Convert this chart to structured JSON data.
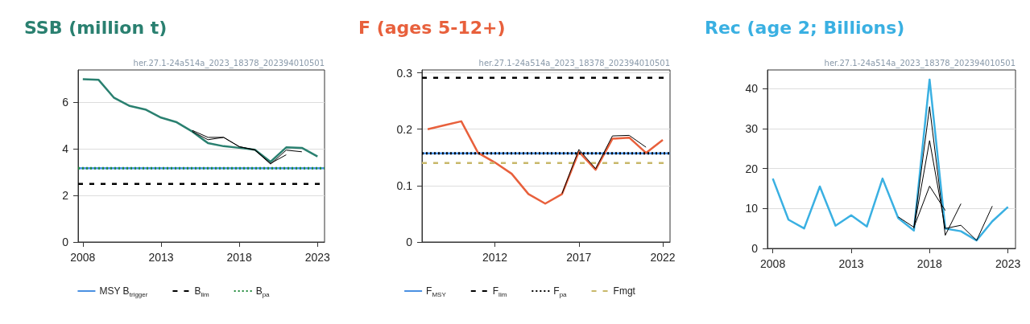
{
  "chart_data": [
    {
      "type": "line",
      "title": "SSB (million t)",
      "annotations": [
        "her.27.1-24a514a_2023_18378_202394010501"
      ],
      "xlim": [
        2007.7,
        2023.45
      ],
      "xticks": [
        2008,
        2013,
        2018,
        2023
      ],
      "ylim": [
        0,
        7.4
      ],
      "yticks": [
        0,
        2,
        4,
        6
      ],
      "grid": "y",
      "legend": "bottom",
      "series": [
        {
          "color": "#000000",
          "x": [
            2015,
            2016,
            2017,
            2018,
            2019,
            2020,
            2021,
            2022
          ],
          "values": [
            4.8,
            4.5,
            4.5,
            4.1,
            3.95,
            3.35,
            3.95,
            3.88
          ]
        },
        {
          "color": "#000000",
          "x": [
            2015,
            2016,
            2017,
            2018,
            2019,
            2020,
            2021
          ],
          "values": [
            4.75,
            4.4,
            4.5,
            4.1,
            3.97,
            3.38,
            3.75
          ]
        },
        {
          "color": "#2a8070",
          "x": [
            2008,
            2009,
            2010,
            2011,
            2012,
            2013,
            2014,
            2015,
            2016,
            2017,
            2018,
            2019,
            2020,
            2021,
            2022,
            2023
          ],
          "values": [
            7.0,
            6.98,
            6.2,
            5.85,
            5.7,
            5.35,
            5.15,
            4.75,
            4.25,
            4.12,
            4.05,
            3.97,
            3.45,
            4.07,
            4.05,
            3.68
          ]
        }
      ],
      "ref_lines": [
        {
          "axis": "y",
          "value": 3.17,
          "label": "MSY B$_{trigger}$",
          "color": "#4a90e2",
          "line_style": "solid"
        },
        {
          "axis": "y",
          "value": 2.5,
          "label": "B$_{lim}$",
          "color": "#000000",
          "line_style": "dashed"
        },
        {
          "axis": "y",
          "value": 3.17,
          "label": "B$_{pa}$",
          "color": "#1f8a3a",
          "line_style": "dotted"
        }
      ]
    },
    {
      "type": "line",
      "title": "F (ages 5-12+)",
      "annotations": [
        "her.27.1-24a514a_2023_18378_202394010501"
      ],
      "xlim": [
        2007.66,
        2022.43
      ],
      "xticks": [
        2012,
        2017,
        2022
      ],
      "ylim": [
        0,
        0.305
      ],
      "yticks": [
        0,
        0.1,
        0.2,
        0.3
      ],
      "grid": "y",
      "legend": "bottom",
      "series": [
        {
          "color": "#000000",
          "x": [
            2016,
            2017,
            2018,
            2019,
            2020,
            2021
          ],
          "values": [
            0.086,
            0.164,
            0.13,
            0.188,
            0.189,
            0.168
          ]
        },
        {
          "color": "#e8603c",
          "x": [
            2008,
            2009,
            2010,
            2011,
            2012,
            2013,
            2014,
            2015,
            2016,
            2017,
            2018,
            2019,
            2020,
            2021,
            2022
          ],
          "values": [
            0.2,
            0.207,
            0.214,
            0.158,
            0.141,
            0.121,
            0.085,
            0.068,
            0.085,
            0.16,
            0.128,
            0.183,
            0.185,
            0.158,
            0.181
          ]
        }
      ],
      "ref_lines": [
        {
          "axis": "y",
          "value": 0.157,
          "label": "F$_{MSY}$",
          "color": "#4a90e2",
          "line_style": "solid"
        },
        {
          "axis": "y",
          "value": 0.291,
          "label": "F$_{lim}$",
          "color": "#000000",
          "line_style": "dashed"
        },
        {
          "axis": "y",
          "value": 0.157,
          "label": "F$_{pa}$",
          "color": "#000000",
          "line_style": "dotted"
        },
        {
          "axis": "y",
          "value": 0.14,
          "label": "Fmgt",
          "color": "#c8b86a",
          "line_style": "dashed"
        }
      ]
    },
    {
      "type": "line",
      "title": "Rec (age 2; Billions)",
      "annotations": [
        "her.27.1-24a514a_2023_18378_202394010501"
      ],
      "xlim": [
        2007.66,
        2023.48
      ],
      "xticks": [
        2008,
        2013,
        2018,
        2023
      ],
      "ylim": [
        0,
        44.7
      ],
      "yticks": [
        0,
        10,
        20,
        30,
        40
      ],
      "grid": "y",
      "series": [
        {
          "color": "#000000",
          "x": [
            2016,
            2017,
            2018,
            2019,
            2020
          ],
          "values": [
            7.9,
            5.3,
            35.5,
            3.3,
            11.2
          ]
        },
        {
          "color": "#000000",
          "x": [
            2017,
            2018,
            2019,
            2020,
            2021,
            2022
          ],
          "values": [
            5.0,
            27,
            5,
            5.8,
            2.0,
            10.6
          ]
        },
        {
          "color": "#000000",
          "x": [
            2017,
            2018,
            2019
          ],
          "values": [
            5.3,
            15.6,
            9.5
          ]
        },
        {
          "color": "#3ab0e2",
          "x": [
            2008,
            2009,
            2010,
            2011,
            2012,
            2013,
            2014,
            2015,
            2016,
            2017,
            2018,
            2019,
            2020,
            2021,
            2022,
            2023
          ],
          "values": [
            17.5,
            7.2,
            5.0,
            15.5,
            5.7,
            8.3,
            5.5,
            17.5,
            7.6,
            4.5,
            42.3,
            5.0,
            4.3,
            2.0,
            6.8,
            10.4
          ]
        }
      ]
    }
  ]
}
